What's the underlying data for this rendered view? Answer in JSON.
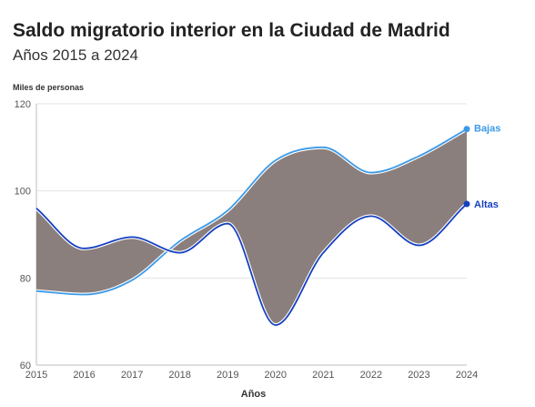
{
  "chart_data": {
    "type": "line",
    "title": "Saldo migratorio interior en la Ciudad de Madrid",
    "subtitle": "Años 2015 a 2024",
    "ylabel": "Miles de personas",
    "xlabel": "Años",
    "x": [
      "2015",
      "2016",
      "2017",
      "2018",
      "2019",
      "2020",
      "2021",
      "2022",
      "2023",
      "2024"
    ],
    "ylim": [
      60,
      120
    ],
    "yticks": [
      "60",
      "80",
      "100",
      "120"
    ],
    "grid": true,
    "fill_between_series": true,
    "series": [
      {
        "name": "Bajas",
        "color": "#3b9ae8",
        "values": [
          77,
          76.2,
          79.5,
          88.5,
          95.5,
          107,
          110,
          104.2,
          108,
          114.2
        ]
      },
      {
        "name": "Altas",
        "color": "#1540c0",
        "values": [
          96,
          86.8,
          89.4,
          85.8,
          92.5,
          69.2,
          85.8,
          94.2,
          87.5,
          97
        ]
      }
    ],
    "fill_color": "#8b7f7d"
  }
}
